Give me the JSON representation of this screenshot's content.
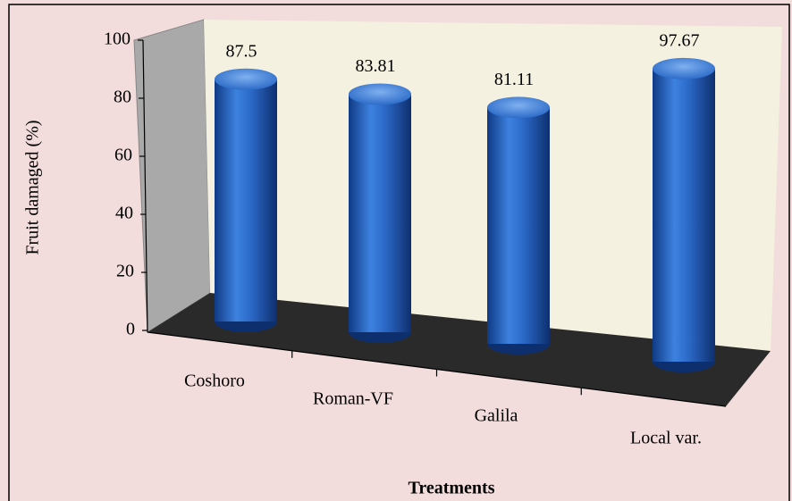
{
  "chart_data": {
    "type": "bar",
    "categories": [
      "Coshoro",
      "Roman-VF",
      "Galila",
      "Local var."
    ],
    "values": [
      87.5,
      83.81,
      81.11,
      97.67
    ],
    "color": "#2f6fd0",
    "ylabel": "Fruit damaged (%)",
    "xlabel": "Treatments",
    "ylim": [
      0,
      100
    ],
    "yticks": [
      0,
      20,
      40,
      60,
      80,
      100
    ]
  }
}
